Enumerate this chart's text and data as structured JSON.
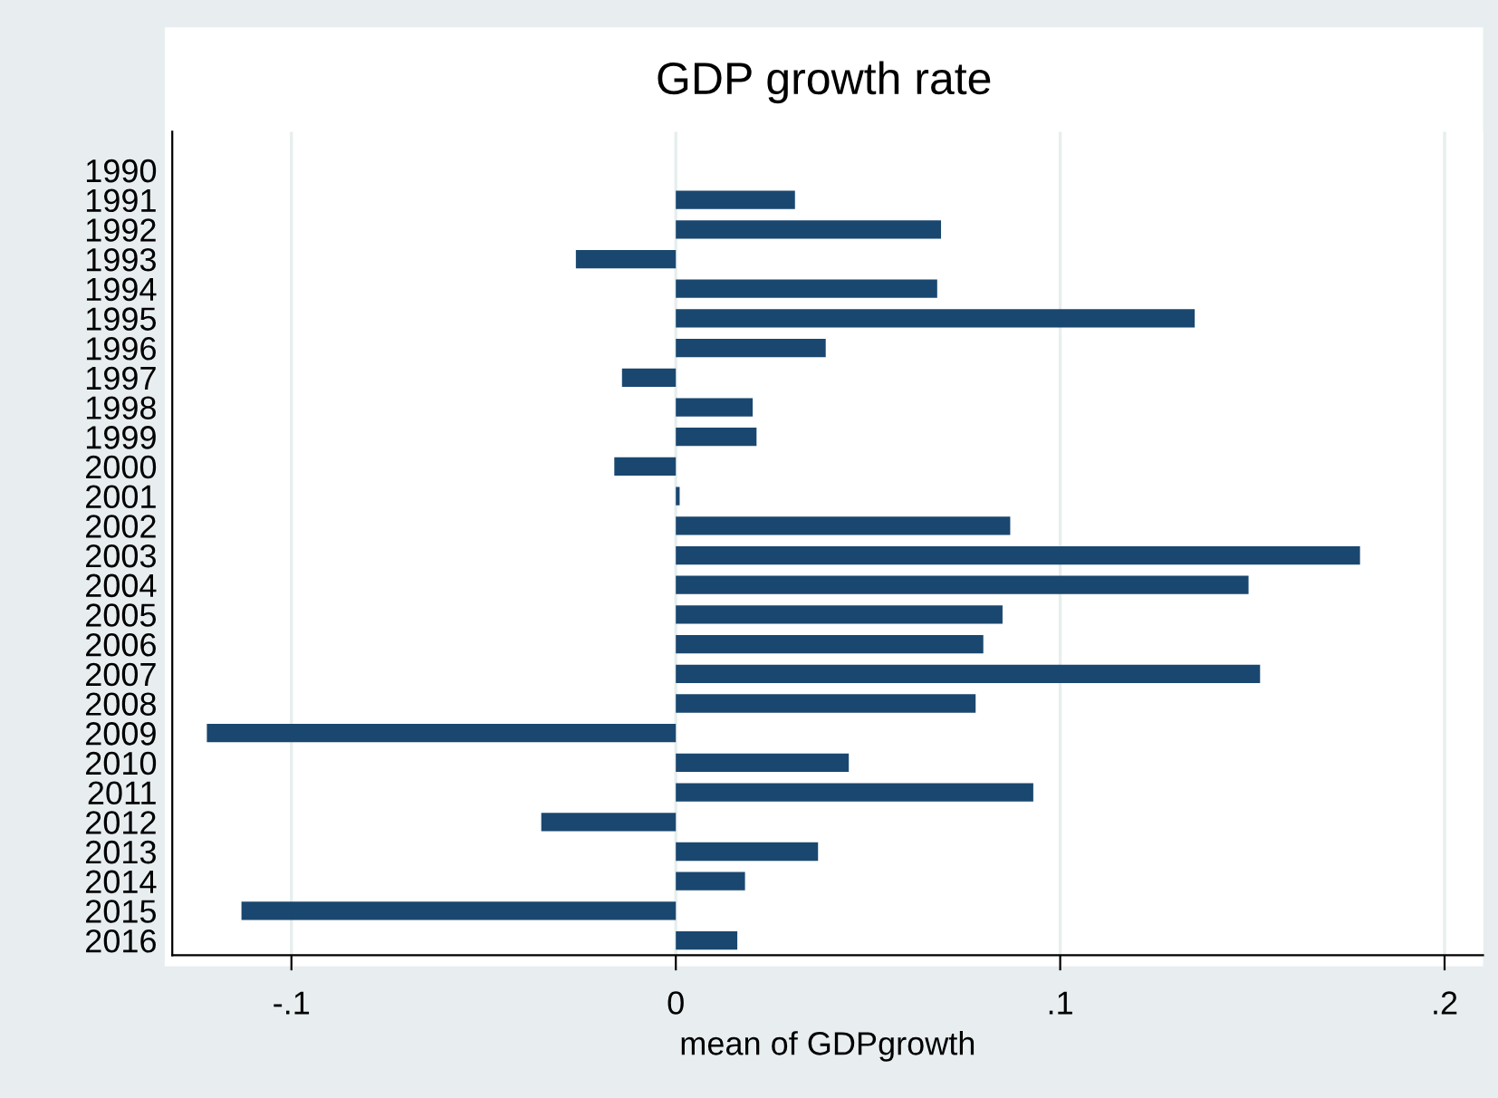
{
  "chart_data": {
    "type": "bar",
    "orientation": "horizontal",
    "title": "GDP growth rate",
    "xlabel": "mean of GDPgrowth",
    "categories": [
      "1990",
      "1991",
      "1992",
      "1993",
      "1994",
      "1995",
      "1996",
      "1997",
      "1998",
      "1999",
      "2000",
      "2001",
      "2002",
      "2003",
      "2004",
      "2005",
      "2006",
      "2007",
      "2008",
      "2009",
      "2010",
      "2011",
      "2012",
      "2013",
      "2014",
      "2015",
      "2016"
    ],
    "values": [
      null,
      0.031,
      0.069,
      -0.026,
      0.068,
      0.135,
      0.039,
      -0.014,
      0.02,
      0.021,
      -0.016,
      0.001,
      0.087,
      0.178,
      0.149,
      0.085,
      0.08,
      0.152,
      0.078,
      -0.122,
      0.045,
      0.093,
      -0.035,
      0.037,
      0.018,
      -0.113,
      0.016
    ],
    "color": "#1a476f",
    "xlim": [
      -0.131,
      0.21
    ],
    "xticks": [
      {
        "value": -0.1,
        "label": "-.1"
      },
      0,
      {
        "value": 0.1,
        "label": ".1"
      },
      {
        "value": 0.2,
        "label": ".2"
      }
    ],
    "grid": "x"
  }
}
